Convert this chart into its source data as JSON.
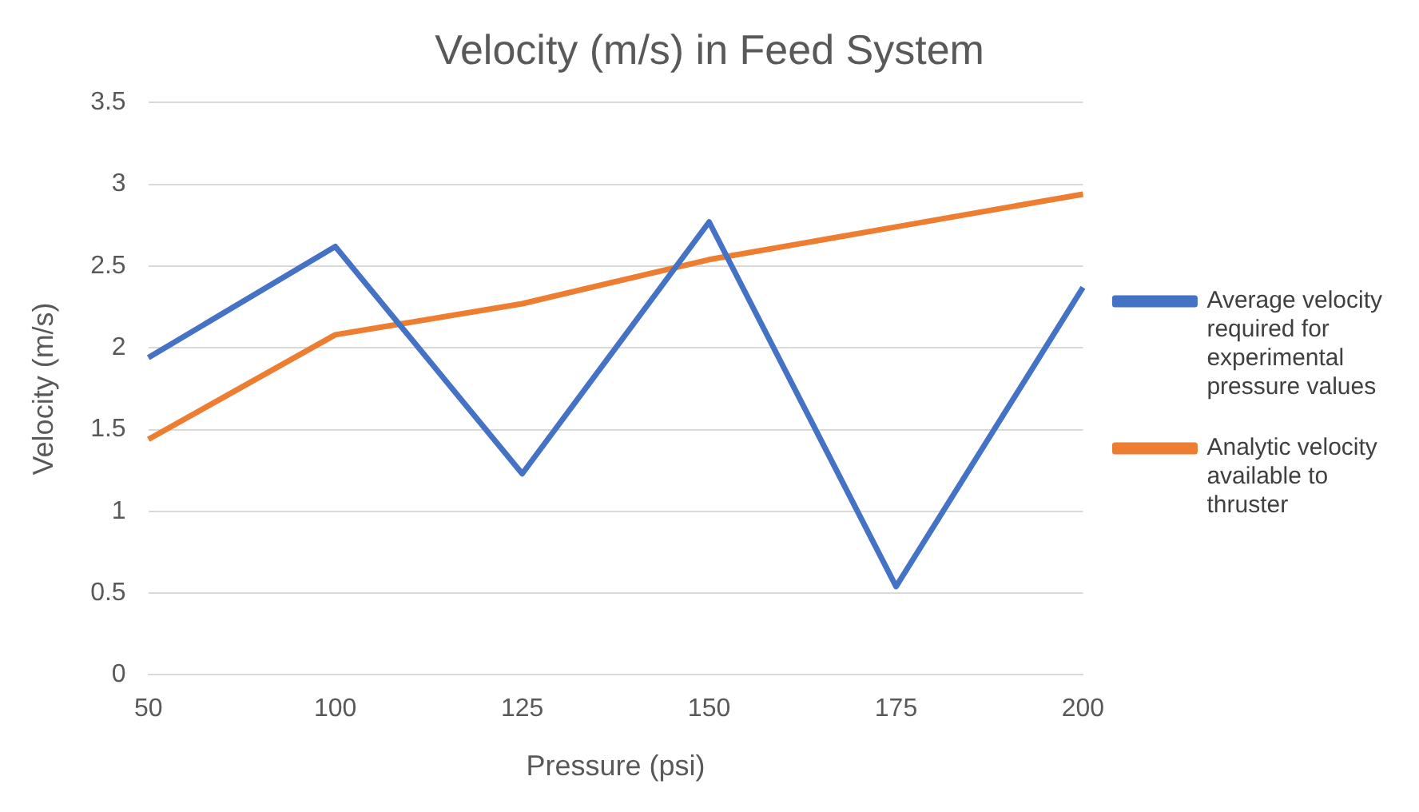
{
  "chart_data": {
    "type": "line",
    "title": "Velocity (m/s) in Feed System",
    "xlabel": "Pressure (psi)",
    "ylabel": "Velocity (m/s)",
    "categories": [
      "50",
      "100",
      "125",
      "150",
      "175",
      "200"
    ],
    "series": [
      {
        "name": "Average velocity required for experimental pressure values",
        "color": "#4472c4",
        "values": [
          1.94,
          2.62,
          1.23,
          2.77,
          0.54,
          2.37
        ]
      },
      {
        "name": "Analytic velocity available to thruster",
        "color": "#ed7d31",
        "values": [
          1.44,
          2.08,
          2.27,
          2.54,
          2.74,
          2.94
        ]
      }
    ],
    "ylim": [
      0,
      3.5
    ],
    "yticks": [
      0,
      0.5,
      1,
      1.5,
      2,
      2.5,
      3,
      3.5
    ],
    "grid": "y",
    "legend": "right",
    "marker": "none",
    "line_style": "solid"
  }
}
